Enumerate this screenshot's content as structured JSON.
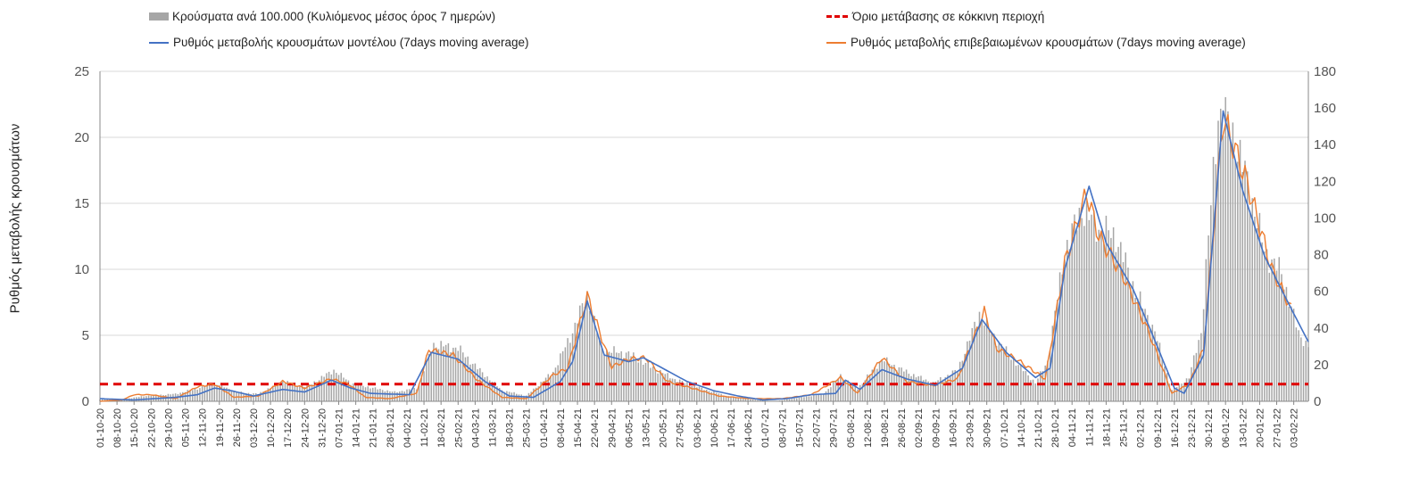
{
  "chart_data": {
    "type": "bar+line",
    "title": "",
    "ylabel": "Ρυθμός μεταβολής κρουσμάτων",
    "ylim": [
      0,
      25
    ],
    "y2lim": [
      0,
      180
    ],
    "y_ticks": [
      "0",
      "5",
      "10",
      "15",
      "20",
      "25"
    ],
    "y2_ticks": [
      "0",
      "20",
      "40",
      "60",
      "80",
      "100",
      "120",
      "140",
      "160",
      "180"
    ],
    "grid": true,
    "legend_placement": "top",
    "x_start": "2020-10-01",
    "x_end": "2022-02-09",
    "x_tick_labels": [
      "01-10-20",
      "08-10-20",
      "15-10-20",
      "22-10-20",
      "29-10-20",
      "05-11-20",
      "12-11-20",
      "19-11-20",
      "26-11-20",
      "03-12-20",
      "10-12-20",
      "17-12-20",
      "24-12-20",
      "31-12-20",
      "07-01-21",
      "14-01-21",
      "21-01-21",
      "28-01-21",
      "04-02-21",
      "11-02-21",
      "18-02-21",
      "25-02-21",
      "04-03-21",
      "11-03-21",
      "18-03-21",
      "25-03-21",
      "01-04-21",
      "08-04-21",
      "15-04-21",
      "22-04-21",
      "29-04-21",
      "06-05-21",
      "13-05-21",
      "20-05-21",
      "27-05-21",
      "03-06-21",
      "10-06-21",
      "17-06-21",
      "24-06-21",
      "01-07-21",
      "08-07-21",
      "15-07-21",
      "22-07-21",
      "29-07-21",
      "05-08-21",
      "12-08-21",
      "19-08-21",
      "26-08-21",
      "02-09-21",
      "09-09-21",
      "16-09-21",
      "23-09-21",
      "30-09-21",
      "07-10-21",
      "14-10-21",
      "21-10-21",
      "28-10-21",
      "04-11-21",
      "11-11-21",
      "18-11-21",
      "25-11-21",
      "02-12-21",
      "09-12-21",
      "16-12-21",
      "23-12-21",
      "30-12-21",
      "06-01-22",
      "13-01-22",
      "20-01-22",
      "27-01-22",
      "03-02-22"
    ],
    "series": [
      {
        "name": "Κρούσματα ανά 100.000 (Κυλιόμενος μέσος όρος 7 ημερών)",
        "type": "bar",
        "axis": "y2",
        "color": "#a6a6a6",
        "points": [
          [
            "2020-10-01",
            1
          ],
          [
            "2020-10-10",
            1
          ],
          [
            "2020-10-20",
            3
          ],
          [
            "2020-11-01",
            4
          ],
          [
            "2020-11-10",
            7
          ],
          [
            "2020-11-17",
            10
          ],
          [
            "2020-11-26",
            5
          ],
          [
            "2020-12-05",
            4
          ],
          [
            "2020-12-15",
            11
          ],
          [
            "2020-12-25",
            8
          ],
          [
            "2021-01-05",
            17
          ],
          [
            "2021-01-12",
            10
          ],
          [
            "2021-01-22",
            7
          ],
          [
            "2021-01-30",
            5
          ],
          [
            "2021-02-08",
            7
          ],
          [
            "2021-02-15",
            31
          ],
          [
            "2021-02-25",
            29
          ],
          [
            "2021-03-05",
            18
          ],
          [
            "2021-03-15",
            6
          ],
          [
            "2021-03-25",
            3
          ],
          [
            "2021-04-05",
            16
          ],
          [
            "2021-04-12",
            35
          ],
          [
            "2021-04-19",
            58
          ],
          [
            "2021-04-25",
            28
          ],
          [
            "2021-05-06",
            26
          ],
          [
            "2021-05-15",
            19
          ],
          [
            "2021-05-25",
            12
          ],
          [
            "2021-06-05",
            7
          ],
          [
            "2021-06-15",
            3
          ],
          [
            "2021-06-25",
            1
          ],
          [
            "2021-07-05",
            0
          ],
          [
            "2021-07-15",
            2
          ],
          [
            "2021-07-25",
            4
          ],
          [
            "2021-08-01",
            14
          ],
          [
            "2021-08-08",
            7
          ],
          [
            "2021-08-18",
            23
          ],
          [
            "2021-08-28",
            16
          ],
          [
            "2021-09-08",
            10
          ],
          [
            "2021-09-18",
            17
          ],
          [
            "2021-09-27",
            48
          ],
          [
            "2021-10-02",
            37
          ],
          [
            "2021-10-10",
            24
          ],
          [
            "2021-10-20",
            10
          ],
          [
            "2021-10-25",
            22
          ],
          [
            "2021-11-01",
            82
          ],
          [
            "2021-11-08",
            105
          ],
          [
            "2021-11-15",
            94
          ],
          [
            "2021-11-22",
            90
          ],
          [
            "2021-11-30",
            60
          ],
          [
            "2021-12-08",
            38
          ],
          [
            "2021-12-15",
            6
          ],
          [
            "2021-12-22",
            13
          ],
          [
            "2021-12-27",
            38
          ],
          [
            "2022-01-03",
            158
          ],
          [
            "2022-01-08",
            150
          ],
          [
            "2022-01-15",
            120
          ],
          [
            "2022-01-22",
            82
          ],
          [
            "2022-01-29",
            70
          ],
          [
            "2022-02-05",
            37
          ],
          [
            "2022-02-09",
            30
          ]
        ]
      },
      {
        "name": "Όριο μετάβασης σε κόκκινη περιοχή",
        "type": "line",
        "axis": "y",
        "color": "#e00000",
        "style": "dashed",
        "value": 1.3
      },
      {
        "name": "Ρυθμός μεταβολής κρουσμάτων μοντέλου (7days moving average)",
        "type": "line",
        "axis": "y",
        "color": "#4472c4",
        "points": [
          [
            "2020-10-01",
            0.2
          ],
          [
            "2020-10-15",
            0.1
          ],
          [
            "2020-11-01",
            0.3
          ],
          [
            "2020-11-10",
            0.5
          ],
          [
            "2020-11-17",
            1.0
          ],
          [
            "2020-11-24",
            0.8
          ],
          [
            "2020-12-03",
            0.4
          ],
          [
            "2020-12-15",
            0.9
          ],
          [
            "2020-12-24",
            0.7
          ],
          [
            "2021-01-04",
            1.6
          ],
          [
            "2021-01-12",
            1.0
          ],
          [
            "2021-01-20",
            0.6
          ],
          [
            "2021-02-05",
            0.5
          ],
          [
            "2021-02-14",
            3.7
          ],
          [
            "2021-02-25",
            3.2
          ],
          [
            "2021-03-08",
            1.5
          ],
          [
            "2021-03-18",
            0.4
          ],
          [
            "2021-03-28",
            0.3
          ],
          [
            "2021-04-08",
            1.5
          ],
          [
            "2021-04-13",
            3.0
          ],
          [
            "2021-04-19",
            7.6
          ],
          [
            "2021-04-26",
            3.5
          ],
          [
            "2021-05-06",
            3.0
          ],
          [
            "2021-05-12",
            3.3
          ],
          [
            "2021-05-20",
            2.5
          ],
          [
            "2021-05-30",
            1.5
          ],
          [
            "2021-06-10",
            0.8
          ],
          [
            "2021-06-20",
            0.4
          ],
          [
            "2021-06-30",
            0.1
          ],
          [
            "2021-07-10",
            0.2
          ],
          [
            "2021-07-20",
            0.5
          ],
          [
            "2021-07-30",
            0.6
          ],
          [
            "2021-08-03",
            1.6
          ],
          [
            "2021-08-09",
            0.9
          ],
          [
            "2021-08-18",
            2.4
          ],
          [
            "2021-08-28",
            1.7
          ],
          [
            "2021-09-09",
            1.2
          ],
          [
            "2021-09-20",
            2.5
          ],
          [
            "2021-09-28",
            6.2
          ],
          [
            "2021-10-08",
            3.7
          ],
          [
            "2021-10-20",
            1.8
          ],
          [
            "2021-10-26",
            2.5
          ],
          [
            "2021-11-01",
            10.0
          ],
          [
            "2021-11-11",
            16.3
          ],
          [
            "2021-11-18",
            12.0
          ],
          [
            "2021-11-29",
            8.5
          ],
          [
            "2021-12-06",
            5.5
          ],
          [
            "2021-12-16",
            1.0
          ],
          [
            "2021-12-20",
            0.6
          ],
          [
            "2021-12-28",
            3.5
          ],
          [
            "2022-01-05",
            22.0
          ],
          [
            "2022-01-13",
            16.0
          ],
          [
            "2022-01-22",
            11.0
          ],
          [
            "2022-02-02",
            7.0
          ],
          [
            "2022-02-09",
            4.5
          ]
        ]
      },
      {
        "name": "Ρυθμός μεταβολής επιβεβαιωμένων κρουσμάτων (7days moving average)",
        "type": "line",
        "axis": "y",
        "color": "#ed7d31",
        "points": [
          [
            "2020-10-01",
            0
          ],
          [
            "2020-10-10",
            0.1
          ],
          [
            "2020-10-15",
            0.5
          ],
          [
            "2020-10-22",
            0.5
          ],
          [
            "2020-11-01",
            0.2
          ],
          [
            "2020-11-10",
            1.1
          ],
          [
            "2020-11-17",
            1.3
          ],
          [
            "2020-11-25",
            0.3
          ],
          [
            "2020-12-05",
            0.4
          ],
          [
            "2020-12-15",
            1.5
          ],
          [
            "2020-12-24",
            1.0
          ],
          [
            "2021-01-04",
            1.7
          ],
          [
            "2021-01-11",
            1.3
          ],
          [
            "2021-01-18",
            0.3
          ],
          [
            "2021-01-28",
            0.2
          ],
          [
            "2021-02-08",
            0.6
          ],
          [
            "2021-02-13",
            3.9
          ],
          [
            "2021-02-23",
            3.5
          ],
          [
            "2021-03-05",
            1.6
          ],
          [
            "2021-03-15",
            0.3
          ],
          [
            "2021-03-25",
            0.2
          ],
          [
            "2021-04-05",
            2.0
          ],
          [
            "2021-04-11",
            2.5
          ],
          [
            "2021-04-19",
            8.0
          ],
          [
            "2021-04-29",
            2.6
          ],
          [
            "2021-05-06",
            3.2
          ],
          [
            "2021-05-13",
            3.3
          ],
          [
            "2021-05-22",
            1.5
          ],
          [
            "2021-06-01",
            1.0
          ],
          [
            "2021-06-12",
            0.4
          ],
          [
            "2021-06-25",
            0.2
          ],
          [
            "2021-07-08",
            0.2
          ],
          [
            "2021-07-20",
            0.5
          ],
          [
            "2021-08-01",
            1.8
          ],
          [
            "2021-08-08",
            0.6
          ],
          [
            "2021-08-18",
            3.3
          ],
          [
            "2021-08-28",
            1.5
          ],
          [
            "2021-09-08",
            1.2
          ],
          [
            "2021-09-18",
            1.7
          ],
          [
            "2021-09-29",
            6.8
          ],
          [
            "2021-10-04",
            4.0
          ],
          [
            "2021-10-12",
            3.2
          ],
          [
            "2021-10-24",
            1.7
          ],
          [
            "2021-11-01",
            10.5
          ],
          [
            "2021-11-10",
            15.8
          ],
          [
            "2021-11-15",
            12.5
          ],
          [
            "2021-11-25",
            9.5
          ],
          [
            "2021-12-06",
            5.0
          ],
          [
            "2021-12-15",
            0.6
          ],
          [
            "2021-12-22",
            1.3
          ],
          [
            "2021-12-28",
            4.0
          ],
          [
            "2022-01-05",
            21.5
          ],
          [
            "2022-01-10",
            19.0
          ],
          [
            "2022-01-15",
            16.5
          ],
          [
            "2022-01-25",
            10.0
          ],
          [
            "2022-02-02",
            7.0
          ]
        ]
      }
    ]
  }
}
